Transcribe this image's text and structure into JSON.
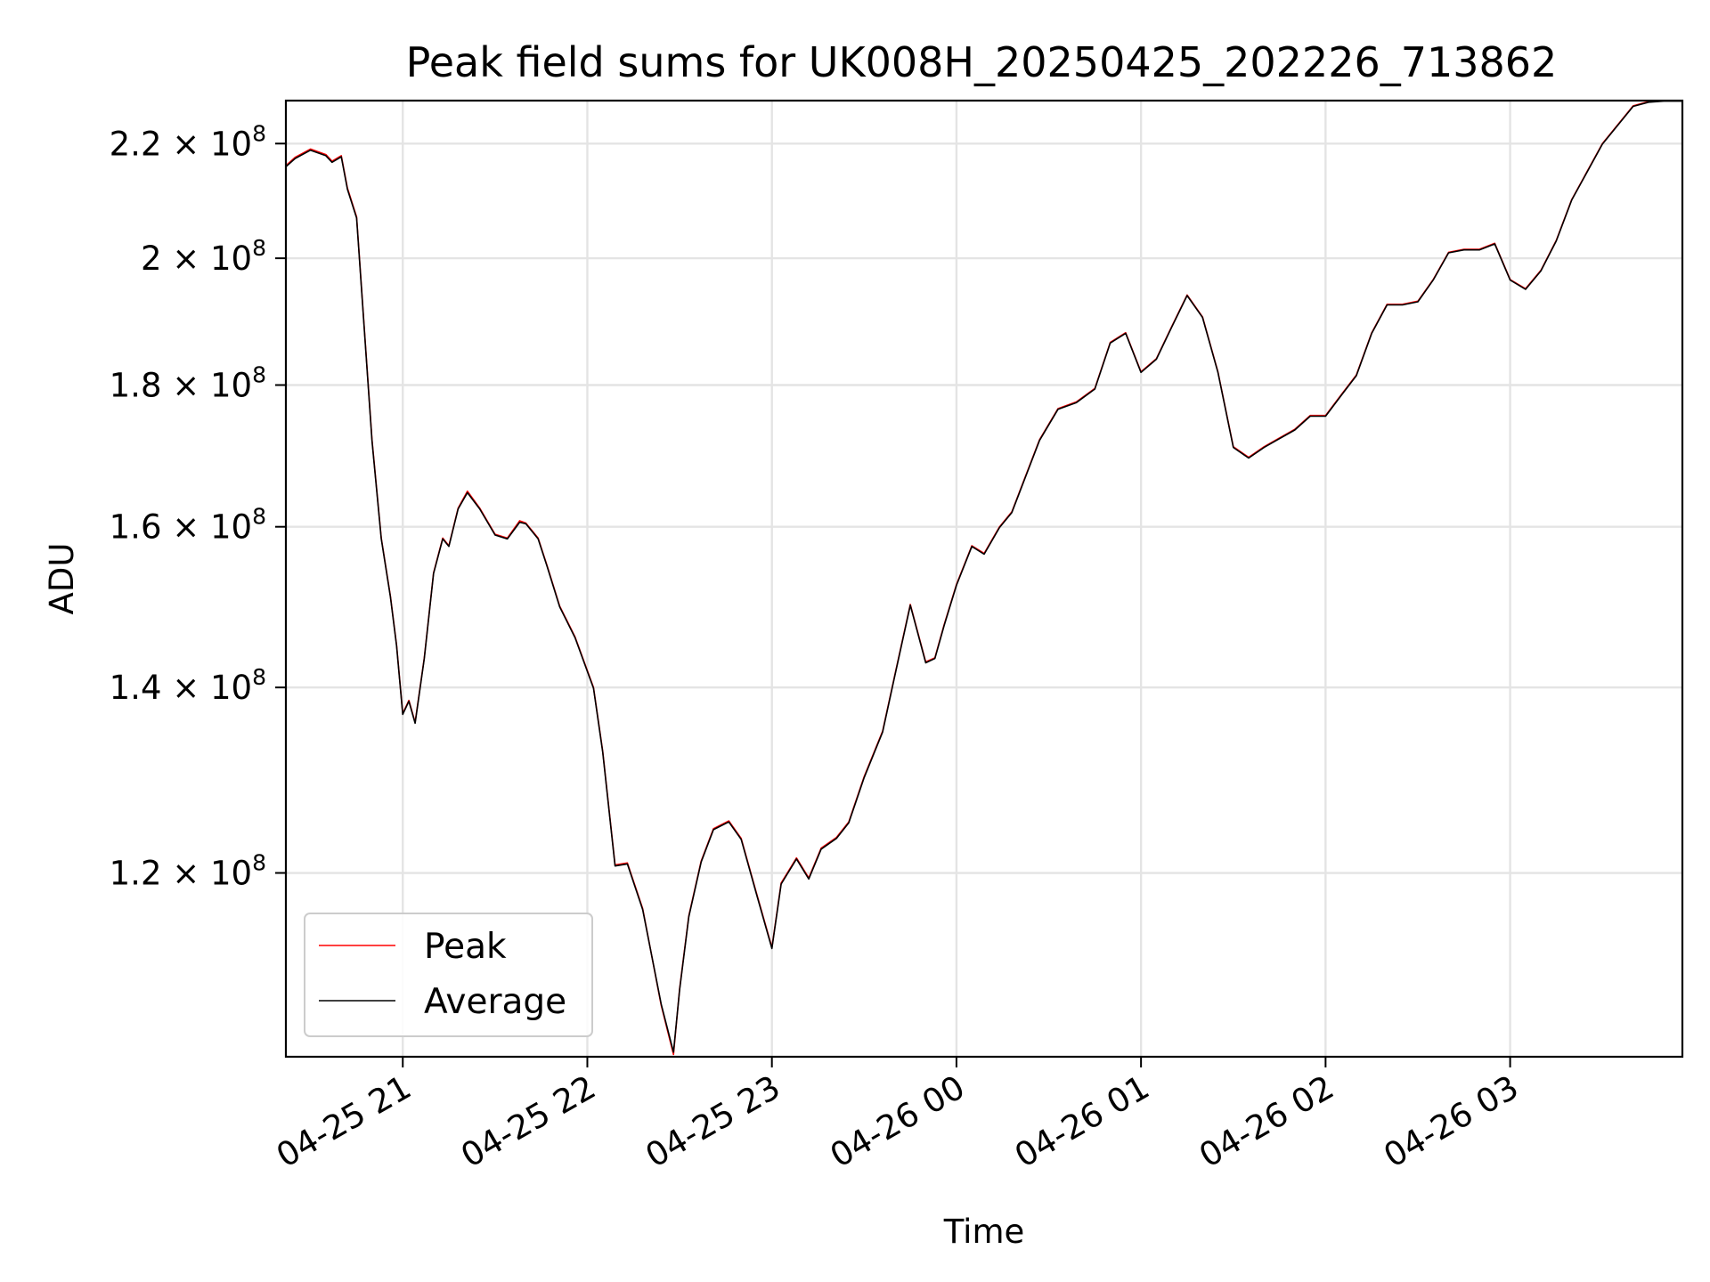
{
  "chart_data": {
    "type": "line",
    "title": "Peak field sums for UK008H_20250425_202226_713862",
    "xlabel": "Time",
    "ylabel": "ADU",
    "yscale": "log",
    "xlim": [
      "2025-04-25 20:22",
      "2025-04-26 03:56"
    ],
    "ylim": [
      103000000,
      228000000
    ],
    "grid": true,
    "legend_position": "lower-left",
    "x_ticks": [
      {
        "t": "2025-04-25 21:00",
        "label": "04-25 21"
      },
      {
        "t": "2025-04-25 22:00",
        "label": "04-25 22"
      },
      {
        "t": "2025-04-25 23:00",
        "label": "04-25 23"
      },
      {
        "t": "2025-04-26 00:00",
        "label": "04-26 00"
      },
      {
        "t": "2025-04-26 01:00",
        "label": "04-26 01"
      },
      {
        "t": "2025-04-26 02:00",
        "label": "04-26 02"
      },
      {
        "t": "2025-04-26 03:00",
        "label": "04-26 03"
      }
    ],
    "y_ticks": [
      {
        "v": 120000000,
        "mant": "1.2",
        "exp": "8"
      },
      {
        "v": 140000000,
        "mant": "1.4",
        "exp": "8"
      },
      {
        "v": 160000000,
        "mant": "1.6",
        "exp": "8"
      },
      {
        "v": 180000000,
        "mant": "1.8",
        "exp": "8"
      },
      {
        "v": 200000000,
        "mant": "2",
        "exp": "8"
      },
      {
        "v": 220000000,
        "mant": "2.2",
        "exp": "8"
      }
    ],
    "y_tick_template": "× 10",
    "x": [
      "2025-04-25 20:22",
      "2025-04-25 20:25",
      "2025-04-25 20:30",
      "2025-04-25 20:35",
      "2025-04-25 20:37",
      "2025-04-25 20:40",
      "2025-04-25 20:42",
      "2025-04-25 20:45",
      "2025-04-25 20:50",
      "2025-04-25 20:53",
      "2025-04-25 20:56",
      "2025-04-25 20:58",
      "2025-04-25 21:00",
      "2025-04-25 21:02",
      "2025-04-25 21:04",
      "2025-04-25 21:07",
      "2025-04-25 21:10",
      "2025-04-25 21:13",
      "2025-04-25 21:15",
      "2025-04-25 21:18",
      "2025-04-25 21:21",
      "2025-04-25 21:25",
      "2025-04-25 21:30",
      "2025-04-25 21:34",
      "2025-04-25 21:38",
      "2025-04-25 21:40",
      "2025-04-25 21:44",
      "2025-04-25 21:47",
      "2025-04-25 21:51",
      "2025-04-25 21:56",
      "2025-04-25 22:02",
      "2025-04-25 22:05",
      "2025-04-25 22:09",
      "2025-04-25 22:13",
      "2025-04-25 22:18",
      "2025-04-25 22:24",
      "2025-04-25 22:28",
      "2025-04-25 22:30",
      "2025-04-25 22:33",
      "2025-04-25 22:37",
      "2025-04-25 22:41",
      "2025-04-25 22:46",
      "2025-04-25 22:50",
      "2025-04-25 22:55",
      "2025-04-25 23:00",
      "2025-04-25 23:03",
      "2025-04-25 23:08",
      "2025-04-25 23:12",
      "2025-04-25 23:16",
      "2025-04-25 23:21",
      "2025-04-25 23:25",
      "2025-04-25 23:30",
      "2025-04-25 23:36",
      "2025-04-25 23:40",
      "2025-04-25 23:45",
      "2025-04-25 23:50",
      "2025-04-25 23:53",
      "2025-04-25 23:56",
      "2025-04-26 00:00",
      "2025-04-26 00:05",
      "2025-04-26 00:09",
      "2025-04-26 00:14",
      "2025-04-26 00:18",
      "2025-04-26 00:23",
      "2025-04-26 00:27",
      "2025-04-26 00:33",
      "2025-04-26 00:39",
      "2025-04-26 00:45",
      "2025-04-26 00:50",
      "2025-04-26 00:55",
      "2025-04-26 01:00",
      "2025-04-26 01:05",
      "2025-04-26 01:10",
      "2025-04-26 01:15",
      "2025-04-26 01:20",
      "2025-04-26 01:25",
      "2025-04-26 01:30",
      "2025-04-26 01:35",
      "2025-04-26 01:40",
      "2025-04-26 01:44",
      "2025-04-26 01:50",
      "2025-04-26 01:55",
      "2025-04-26 02:00",
      "2025-04-26 02:05",
      "2025-04-26 02:10",
      "2025-04-26 02:15",
      "2025-04-26 02:20",
      "2025-04-26 02:25",
      "2025-04-26 02:30",
      "2025-04-26 02:35",
      "2025-04-26 02:40",
      "2025-04-26 02:45",
      "2025-04-26 02:50",
      "2025-04-26 02:55",
      "2025-04-26 03:00",
      "2025-04-26 03:05",
      "2025-04-26 03:10",
      "2025-04-26 03:15",
      "2025-04-26 03:20",
      "2025-04-26 03:30",
      "2025-04-26 03:40",
      "2025-04-26 03:45",
      "2025-04-26 03:50",
      "2025-04-26 03:56"
    ],
    "series": [
      {
        "name": "Peak",
        "color": "#ff0000",
        "values": [
          216000000,
          217500000,
          219000000,
          218000000,
          216800000,
          217800000,
          212000000,
          207000000,
          172000000,
          158500000,
          151000000,
          145000000,
          137000000,
          138500000,
          136000000,
          143500000,
          154000000,
          158500000,
          157500000,
          162500000,
          164800000,
          162500000,
          159000000,
          158500000,
          160800000,
          160500000,
          158500000,
          154800000,
          149800000,
          146000000,
          140000000,
          132800000,
          120800000,
          121000000,
          116500000,
          107500000,
          103200000,
          109000000,
          115800000,
          121200000,
          124500000,
          125300000,
          123500000,
          118000000,
          112800000,
          119000000,
          121500000,
          119500000,
          122500000,
          123600000,
          125200000,
          130000000,
          135000000,
          141500000,
          150000000,
          143000000,
          143500000,
          147500000,
          152500000,
          157500000,
          156500000,
          160000000,
          162000000,
          167500000,
          172000000,
          176500000,
          177500000,
          179500000,
          186500000,
          188000000,
          182000000,
          184000000,
          189000000,
          194000000,
          190500000,
          182000000,
          171000000,
          169500000,
          171000000,
          172000000,
          173500000,
          175500000,
          175500000,
          178500000,
          181500000,
          188000000,
          192500000,
          192500000,
          193000000,
          196500000,
          201000000,
          201500000,
          201500000,
          202500000,
          196500000,
          195000000,
          198000000,
          203000000,
          210000000,
          220000000,
          227000000,
          227800000,
          228000000,
          228000000
        ]
      },
      {
        "name": "Average",
        "color": "#000000",
        "values": [
          215800000,
          217300000,
          218800000,
          217800000,
          216600000,
          217600000,
          211800000,
          206800000,
          171800000,
          158400000,
          150900000,
          144900000,
          136900000,
          138400000,
          135900000,
          143400000,
          153900000,
          158400000,
          157400000,
          162400000,
          164600000,
          162400000,
          158900000,
          158400000,
          160600000,
          160400000,
          158400000,
          154700000,
          149700000,
          145900000,
          139900000,
          132700000,
          120700000,
          120900000,
          116400000,
          107600000,
          103400000,
          108900000,
          115700000,
          121100000,
          124400000,
          125200000,
          123400000,
          117900000,
          112700000,
          118900000,
          121400000,
          119400000,
          122400000,
          123500000,
          125100000,
          129900000,
          134900000,
          141400000,
          149900000,
          142900000,
          143400000,
          147400000,
          152400000,
          157400000,
          156400000,
          159900000,
          161900000,
          167400000,
          171900000,
          176400000,
          177400000,
          179400000,
          186400000,
          187900000,
          181900000,
          183900000,
          188900000,
          193900000,
          190400000,
          181900000,
          170900000,
          169400000,
          170900000,
          171900000,
          173400000,
          175400000,
          175400000,
          178400000,
          181400000,
          187900000,
          192400000,
          192400000,
          192900000,
          196400000,
          200900000,
          201400000,
          201400000,
          202400000,
          196400000,
          194900000,
          197900000,
          202900000,
          209900000,
          219900000,
          226900000,
          227700000,
          227900000,
          227900000
        ]
      }
    ]
  }
}
